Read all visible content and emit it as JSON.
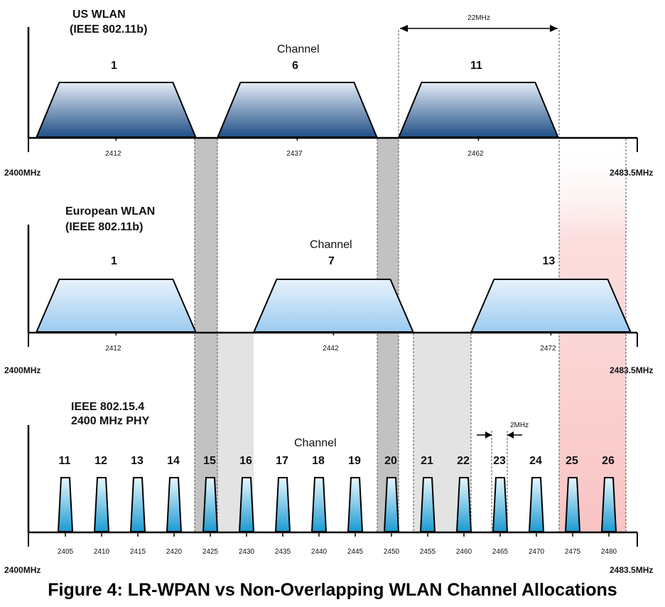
{
  "us": {
    "title1": "US WLAN",
    "title2": "(IEEE 802.11b)",
    "channel_word": "Channel",
    "channels": [
      "1",
      "6",
      "11"
    ],
    "center_labels": [
      "2412",
      "2437",
      "2462"
    ],
    "width_label": "22MHz",
    "left_freq": "2400MHz",
    "right_freq": "2483.5MHz"
  },
  "eu": {
    "title1": "European WLAN",
    "title2": "(IEEE 802.11b)",
    "channel_word": "Channel",
    "channels": [
      "1",
      "7",
      "13"
    ],
    "center_labels": [
      "2412",
      "2442",
      "2472"
    ],
    "left_freq": "2400MHz",
    "right_freq": "2483.5MHz"
  },
  "lr": {
    "title1": "IEEE 802.15.4",
    "title2": "2400 MHz PHY",
    "channel_word": "Channel",
    "spacing_label": "2MHz",
    "channels": [
      "11",
      "12",
      "13",
      "14",
      "15",
      "16",
      "17",
      "18",
      "19",
      "20",
      "21",
      "22",
      "23",
      "24",
      "25",
      "26"
    ],
    "center_labels": [
      "2405",
      "2410",
      "2415",
      "2420",
      "2425",
      "2430",
      "2435",
      "2440",
      "2445",
      "2450",
      "2455",
      "2460",
      "2465",
      "2470",
      "2475",
      "2480"
    ],
    "left_freq": "2400MHz",
    "right_freq": "2483.5MHz"
  },
  "caption": "Figure 4: LR-WPAN vs Non-Overlapping WLAN Channel Allocations",
  "colors": {
    "us_fill_top": "#e4ecf6",
    "us_fill_bottom": "#1f4f86",
    "eu_fill_top": "#e8f2fb",
    "eu_fill_bottom": "#9ccbf0",
    "lr_fill_top": "#eaf8fe",
    "lr_fill_bottom": "#1a9ad2",
    "overlap_dark": "#c2c2c2",
    "overlap_light": "#e3e3e3",
    "red_band": "#f9c4c4"
  }
}
